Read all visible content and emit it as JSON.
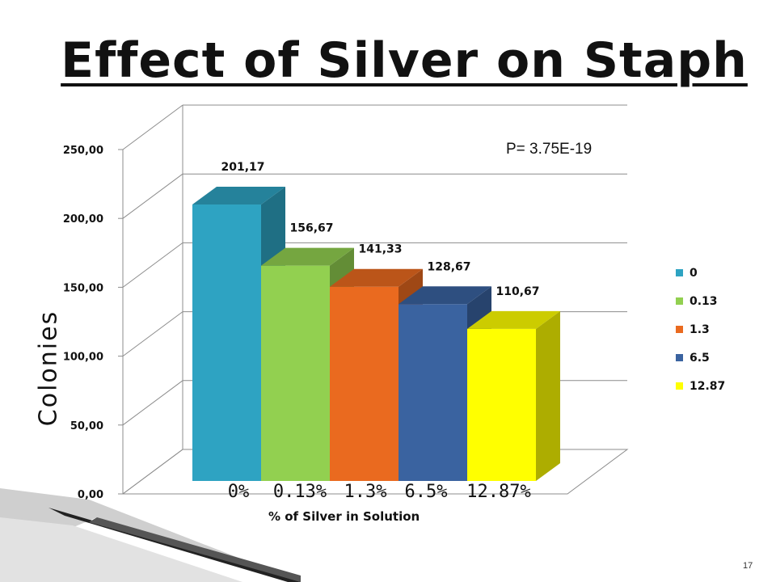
{
  "slide": {
    "title": "Effect of Silver on Staph",
    "page_number": "17"
  },
  "chart_data": {
    "type": "bar",
    "style": "3d-clustered",
    "title": "",
    "annotation": "P= 3.75E-19",
    "ylabel": "Colonies",
    "xlabel": "% of Silver in Solution",
    "ylim": [
      0,
      250
    ],
    "yticks": [
      "0,00",
      "50,00",
      "100,00",
      "150,00",
      "200,00",
      "250,00"
    ],
    "category_labels_text": [
      "0%",
      "0.13%",
      "1.3%",
      "6.5%",
      "12.87%"
    ],
    "grid": true,
    "legend_position": "right",
    "series": [
      {
        "name": "0",
        "value": 201.17,
        "label": "201,17",
        "color": "#2EA3C2"
      },
      {
        "name": "0.13",
        "value": 156.67,
        "label": "156,67",
        "color": "#92D050"
      },
      {
        "name": "1.3",
        "value": 141.33,
        "label": "141,33",
        "color": "#EA6A1F"
      },
      {
        "name": "6.5",
        "value": 128.67,
        "label": "128,67",
        "color": "#3A63A0"
      },
      {
        "name": "12.87",
        "value": 110.67,
        "label": "110,67",
        "color": "#FFFF00"
      }
    ]
  }
}
